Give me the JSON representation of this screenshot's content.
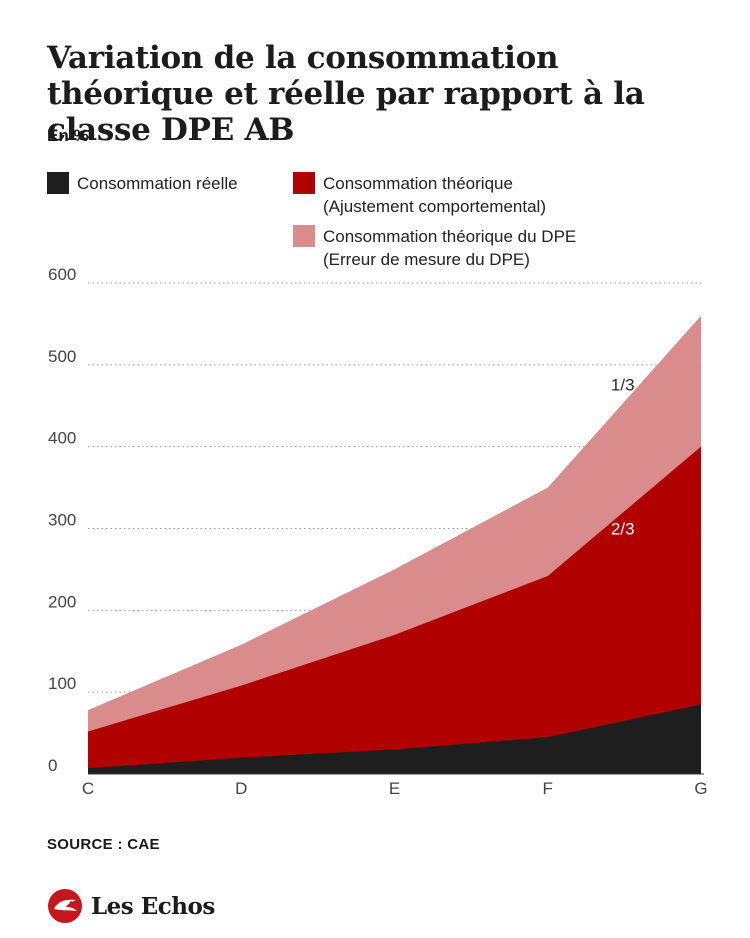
{
  "title": "Variation de la consommation théorique et réelle par rapport à la classe DPE AB",
  "unit": "En %",
  "legend": [
    {
      "line1": "Consommation réelle",
      "line2": "",
      "color": "#1e1e1e"
    },
    {
      "line1": "Consommation théorique",
      "line2": "(Ajustement comportemental)",
      "color": "#b00000"
    },
    {
      "line1": "Consommation théorique du DPE",
      "line2": "(Erreur de mesure du DPE)",
      "color": "#da8c8c"
    }
  ],
  "chart_data": {
    "type": "area",
    "stacked": false,
    "categories": [
      "C",
      "D",
      "E",
      "F",
      "G"
    ],
    "ylim": [
      0,
      600
    ],
    "yticks": [
      0,
      100,
      200,
      300,
      400,
      500,
      600
    ],
    "grid": true,
    "series": [
      {
        "name": "Consommation théorique du DPE",
        "line2": "(Erreur de mesure du DPE)",
        "color": "#da8c8c",
        "values": [
          78,
          158,
          250,
          350,
          560
        ]
      },
      {
        "name": "Consommation théorique",
        "line2": "(Ajustement comportemental)",
        "color": "#b00000",
        "values": [
          52,
          108,
          170,
          242,
          400
        ]
      },
      {
        "name": "Consommation réelle",
        "color": "#1e1e1e",
        "values": [
          7,
          20,
          30,
          45,
          85
        ]
      }
    ],
    "annotations": [
      {
        "text": "1/3",
        "x": "F",
        "y": 476
      },
      {
        "text": "2/3",
        "x": "F",
        "y": 300
      }
    ]
  },
  "source": "SOURCE : CAE",
  "brand": "Les Echos"
}
